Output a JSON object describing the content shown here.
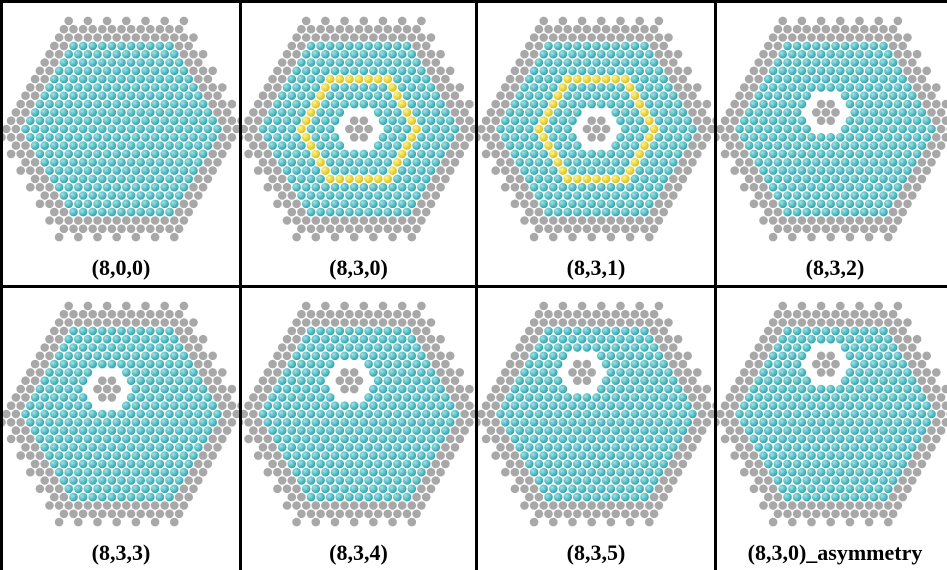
{
  "colors": {
    "gray_atom": "#a8a8a8",
    "teal_atom": "#2fa6ae",
    "teal_highlight": "#9fe3e6",
    "yellow_atom": "#d9c21c",
    "yellow_highlight": "#fff58a"
  },
  "panels": [
    {
      "label": "(8,0,0)",
      "hole": false,
      "ring": false,
      "hole_variant": 0
    },
    {
      "label": "(8,3,0)",
      "hole": true,
      "ring": true,
      "hole_variant": 0
    },
    {
      "label": "(8,3,1)",
      "hole": true,
      "ring": true,
      "hole_variant": 1
    },
    {
      "label": "(8,3,2)",
      "hole": true,
      "ring": false,
      "hole_variant": 2
    },
    {
      "label": "(8,3,3)",
      "hole": true,
      "ring": false,
      "hole_variant": 3
    },
    {
      "label": "(8,3,4)",
      "hole": true,
      "ring": false,
      "hole_variant": 4
    },
    {
      "label": "(8,3,5)",
      "hole": true,
      "ring": false,
      "hole_variant": 5
    },
    {
      "label": "(8,3,0)_asymmetry",
      "hole": true,
      "ring": false,
      "hole_variant": 6
    }
  ]
}
